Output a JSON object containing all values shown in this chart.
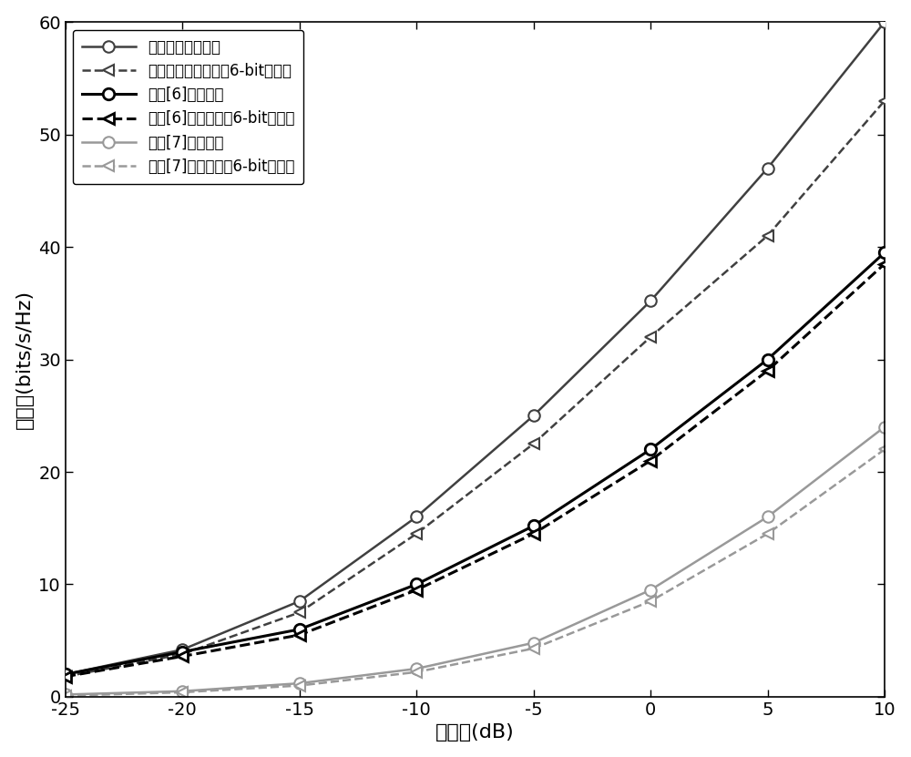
{
  "x": [
    -25,
    -20,
    -15,
    -10,
    -5,
    0,
    5,
    10
  ],
  "series1_y": [
    2.0,
    4.2,
    8.5,
    16.0,
    25.0,
    35.2,
    47.0,
    60.0
  ],
  "series2_y": [
    1.8,
    3.8,
    7.5,
    14.5,
    22.5,
    32.0,
    41.0,
    53.0
  ],
  "series3_y": [
    2.0,
    4.0,
    6.0,
    10.0,
    15.2,
    22.0,
    30.0,
    39.5
  ],
  "series4_y": [
    1.8,
    3.6,
    5.5,
    9.5,
    14.5,
    21.0,
    29.0,
    38.5
  ],
  "series5_y": [
    0.2,
    0.5,
    1.2,
    2.5,
    4.8,
    9.5,
    16.0,
    24.0
  ],
  "series6_y": [
    0.1,
    0.4,
    1.0,
    2.2,
    4.3,
    8.5,
    14.5,
    22.0
  ],
  "series1_label": "本发明提出的设计",
  "series2_label": "本发明提出的设计，6-bit分辨率",
  "series3_label": "参考[6]中的设计",
  "series4_label": "参考[6]中的设计，6-bit分辨率",
  "series5_label": "参考[7]中的设计",
  "series6_label": "参考[7]中的设计，6-bit分辨率",
  "color_dark_gray": "#404040",
  "color_black": "#000000",
  "color_light_gray": "#999999",
  "xlabel": "信噪比(dB)",
  "ylabel": "速率和(bits/s/Hz)",
  "xlim": [
    -25,
    10
  ],
  "ylim": [
    0,
    60
  ],
  "xticks": [
    -25,
    -20,
    -15,
    -10,
    -5,
    0,
    5,
    10
  ],
  "yticks": [
    0,
    10,
    20,
    30,
    40,
    50,
    60
  ]
}
